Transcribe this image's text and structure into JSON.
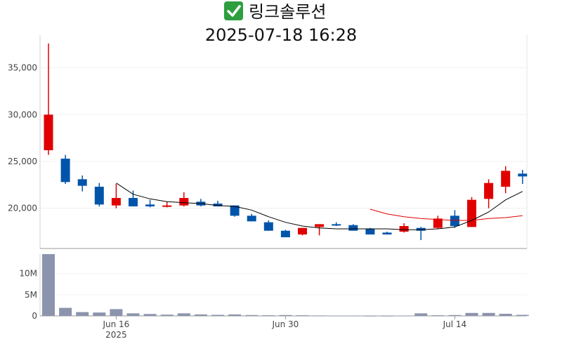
{
  "header": {
    "status_icon": "check-mark-icon",
    "company": "링크솔루션",
    "timestamp": "2025-07-18 16:28"
  },
  "colors": {
    "up": "#e00000",
    "down": "#0055aa",
    "volume": "#8b93ad",
    "ma_short": "#000000",
    "ma_long": "#e00000",
    "check_bg": "#2e9e3e"
  },
  "chart_data": [
    {
      "type": "candlestick",
      "title": "2025-07-18 16:28",
      "ylim": [
        15700,
        38500
      ],
      "y_ticks": [
        {
          "value": 20000,
          "label": "20,000"
        },
        {
          "value": 25000,
          "label": "25,000"
        },
        {
          "value": 30000,
          "label": "30,000"
        },
        {
          "value": 35000,
          "label": "35,000"
        }
      ],
      "x_ticks": [
        {
          "index": 4,
          "label": "Jun 16",
          "sublabel": "2025"
        },
        {
          "index": 14,
          "label": "Jun 30",
          "sublabel": ""
        },
        {
          "index": 24,
          "label": "Jul 14",
          "sublabel": ""
        }
      ],
      "candles": [
        {
          "open": 26200,
          "high": 37600,
          "low": 25700,
          "close": 30000
        },
        {
          "open": 25300,
          "high": 25700,
          "low": 22600,
          "close": 22800
        },
        {
          "open": 23100,
          "high": 23500,
          "low": 21800,
          "close": 22400
        },
        {
          "open": 22300,
          "high": 22700,
          "low": 20200,
          "close": 20400
        },
        {
          "open": 20300,
          "high": 22600,
          "low": 20000,
          "close": 21100
        },
        {
          "open": 21100,
          "high": 21900,
          "low": 20200,
          "close": 20200
        },
        {
          "open": 20400,
          "high": 20900,
          "low": 20100,
          "close": 20200
        },
        {
          "open": 20200,
          "high": 20700,
          "low": 20100,
          "close": 20300
        },
        {
          "open": 20300,
          "high": 21700,
          "low": 20200,
          "close": 21100
        },
        {
          "open": 20700,
          "high": 21000,
          "low": 20200,
          "close": 20300
        },
        {
          "open": 20500,
          "high": 20800,
          "low": 20200,
          "close": 20200
        },
        {
          "open": 20300,
          "high": 20300,
          "low": 19100,
          "close": 19200
        },
        {
          "open": 19200,
          "high": 19400,
          "low": 18600,
          "close": 18600
        },
        {
          "open": 18500,
          "high": 18700,
          "low": 17600,
          "close": 17600
        },
        {
          "open": 17600,
          "high": 17700,
          "low": 16900,
          "close": 16900
        },
        {
          "open": 17200,
          "high": 17900,
          "low": 17100,
          "close": 17900
        },
        {
          "open": 18000,
          "high": 18300,
          "low": 17100,
          "close": 18300
        },
        {
          "open": 18300,
          "high": 18500,
          "low": 18100,
          "close": 18200
        },
        {
          "open": 18200,
          "high": 18300,
          "low": 17600,
          "close": 17600
        },
        {
          "open": 17800,
          "high": 17900,
          "low": 17200,
          "close": 17200
        },
        {
          "open": 17400,
          "high": 17500,
          "low": 17200,
          "close": 17200
        },
        {
          "open": 17500,
          "high": 18400,
          "low": 17400,
          "close": 18100
        },
        {
          "open": 17900,
          "high": 18000,
          "low": 16600,
          "close": 17600
        },
        {
          "open": 17900,
          "high": 19200,
          "low": 17800,
          "close": 18900
        },
        {
          "open": 19200,
          "high": 19800,
          "low": 17900,
          "close": 18100
        },
        {
          "open": 18000,
          "high": 21200,
          "low": 18000,
          "close": 20900
        },
        {
          "open": 21000,
          "high": 23100,
          "low": 20000,
          "close": 22700
        },
        {
          "open": 22300,
          "high": 24500,
          "low": 21600,
          "close": 24000
        },
        {
          "open": 23700,
          "high": 24100,
          "low": 22600,
          "close": 23400
        }
      ],
      "ma_short": [
        null,
        null,
        null,
        null,
        22700,
        21500,
        21000,
        20700,
        20600,
        20500,
        20300,
        20200,
        19800,
        19100,
        18500,
        18100,
        17900,
        17800,
        17800,
        17800,
        17800,
        17700,
        17700,
        17800,
        18000,
        18700,
        19600,
        20900,
        21800
      ],
      "ma_long": [
        null,
        null,
        null,
        null,
        null,
        null,
        null,
        null,
        null,
        null,
        null,
        null,
        null,
        null,
        null,
        null,
        null,
        null,
        null,
        19900,
        19400,
        19100,
        18900,
        18800,
        18700,
        18700,
        18900,
        19000,
        19200
      ]
    },
    {
      "type": "bar",
      "ylim": [
        0,
        14600000
      ],
      "y_ticks": [
        {
          "value": 0,
          "label": "0"
        },
        {
          "value": 5000000,
          "label": "5M"
        },
        {
          "value": 10000000,
          "label": "10M"
        }
      ],
      "volumes": [
        14600000,
        1900000,
        900000,
        800000,
        1600000,
        600000,
        450000,
        300000,
        600000,
        350000,
        250000,
        350000,
        200000,
        150000,
        200000,
        150000,
        100000,
        80000,
        80000,
        50000,
        50000,
        80000,
        600000,
        150000,
        200000,
        700000,
        700000,
        500000,
        250000
      ]
    }
  ]
}
